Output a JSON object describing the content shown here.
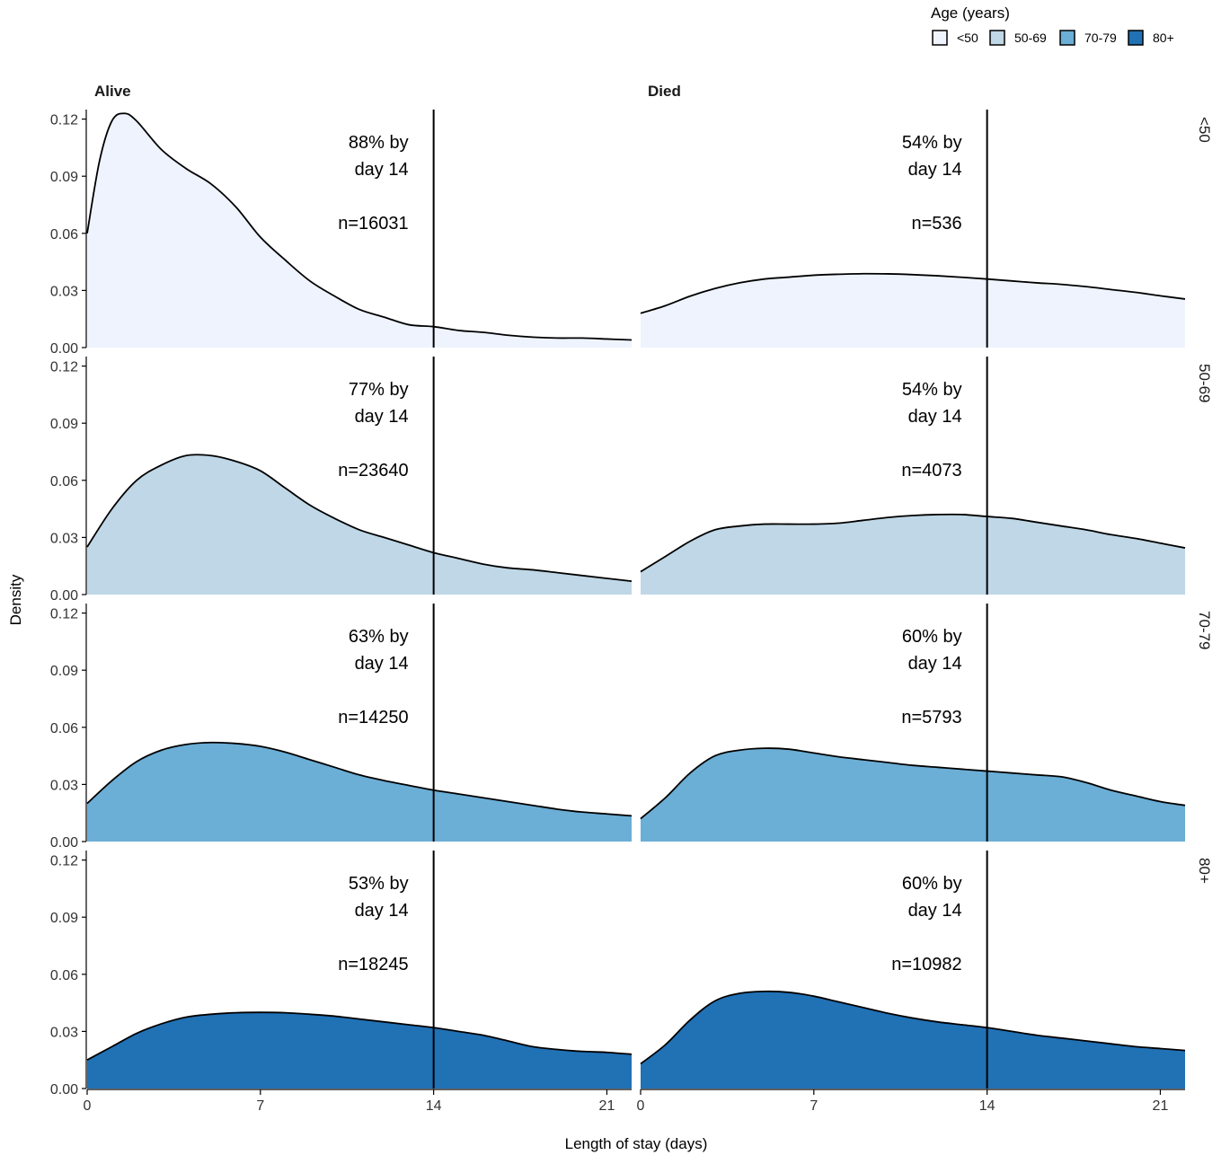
{
  "chart_data": {
    "type": "area",
    "subtype": "density",
    "xlabel": "Length of stay (days)",
    "ylabel": "Density",
    "xlim": [
      0,
      22
    ],
    "ylim": [
      0,
      0.125
    ],
    "x_ticks": [
      0,
      7,
      14,
      21
    ],
    "x_tick_labels": [
      "0",
      "7",
      "14",
      "21"
    ],
    "y_ticks": [
      0,
      0.03,
      0.06,
      0.09,
      0.12
    ],
    "y_tick_labels": [
      "0.00",
      "0.03",
      "0.06",
      "0.09",
      "0.12"
    ],
    "reference_line_x": 14,
    "columns": [
      "Alive",
      "Died"
    ],
    "rows": [
      "<50",
      "50-69",
      "70-79",
      "80+"
    ],
    "legend": {
      "title": "Age (years)",
      "position": "top-right",
      "entries": [
        {
          "label": "<50",
          "color": "#eef3fe"
        },
        {
          "label": "50-69",
          "color": "#bfd7e6"
        },
        {
          "label": "70-79",
          "color": "#6baed6"
        },
        {
          "label": "80+",
          "color": "#2171b5"
        }
      ]
    },
    "panels": [
      {
        "column": "Alive",
        "row": "<50",
        "color": "#eef3fe",
        "pct_text": "88% by",
        "day_text": "day 14",
        "n_text": "n=16031",
        "x": [
          0,
          0.5,
          1,
          1.5,
          2,
          3,
          4,
          5,
          6,
          7,
          8,
          9,
          10,
          11,
          12,
          13,
          14,
          15,
          16,
          17,
          18,
          19,
          20,
          21,
          22
        ],
        "y": [
          0.06,
          0.098,
          0.119,
          0.123,
          0.119,
          0.104,
          0.094,
          0.086,
          0.074,
          0.058,
          0.046,
          0.035,
          0.027,
          0.02,
          0.016,
          0.012,
          0.011,
          0.009,
          0.008,
          0.0065,
          0.0055,
          0.005,
          0.005,
          0.0045,
          0.004
        ]
      },
      {
        "column": "Died",
        "row": "<50",
        "color": "#eef3fe",
        "pct_text": "54% by",
        "day_text": "day 14",
        "n_text": "n=536",
        "x": [
          0,
          1,
          2,
          3,
          4,
          5,
          6,
          7,
          8,
          9,
          10,
          11,
          12,
          13,
          14,
          15,
          16,
          17,
          18,
          19,
          20,
          21,
          22
        ],
        "y": [
          0.018,
          0.022,
          0.027,
          0.031,
          0.034,
          0.036,
          0.037,
          0.038,
          0.0385,
          0.0388,
          0.0387,
          0.0383,
          0.0377,
          0.0369,
          0.036,
          0.035,
          0.034,
          0.0332,
          0.032,
          0.0305,
          0.029,
          0.0272,
          0.0255
        ]
      },
      {
        "column": "Alive",
        "row": "50-69",
        "color": "#bfd7e6",
        "pct_text": "77% by",
        "day_text": "day 14",
        "n_text": "n=23640",
        "x": [
          0,
          1,
          2,
          3,
          4,
          5,
          6,
          7,
          8,
          9,
          10,
          11,
          12,
          13,
          14,
          15,
          16,
          17,
          18,
          19,
          20,
          21,
          22
        ],
        "y": [
          0.025,
          0.045,
          0.06,
          0.068,
          0.073,
          0.073,
          0.07,
          0.065,
          0.056,
          0.047,
          0.04,
          0.034,
          0.03,
          0.026,
          0.022,
          0.019,
          0.016,
          0.014,
          0.013,
          0.0115,
          0.01,
          0.0085,
          0.007
        ]
      },
      {
        "column": "Died",
        "row": "50-69",
        "color": "#bfd7e6",
        "pct_text": "54% by",
        "day_text": "day 14",
        "n_text": "n=4073",
        "x": [
          0,
          1,
          2,
          3,
          4,
          5,
          6,
          7,
          8,
          9,
          10,
          11,
          12,
          13,
          14,
          15,
          16,
          17,
          18,
          19,
          20,
          21,
          22
        ],
        "y": [
          0.012,
          0.02,
          0.028,
          0.034,
          0.036,
          0.037,
          0.037,
          0.037,
          0.0375,
          0.039,
          0.0405,
          0.0415,
          0.042,
          0.042,
          0.041,
          0.04,
          0.038,
          0.036,
          0.034,
          0.0315,
          0.0295,
          0.027,
          0.0245
        ]
      },
      {
        "column": "Alive",
        "row": "70-79",
        "color": "#6baed6",
        "pct_text": "63% by",
        "day_text": "day 14",
        "n_text": "n=14250",
        "x": [
          0,
          1,
          2,
          3,
          4,
          5,
          6,
          7,
          8,
          9,
          10,
          11,
          12,
          13,
          14,
          15,
          16,
          17,
          18,
          19,
          20,
          21,
          22
        ],
        "y": [
          0.02,
          0.032,
          0.042,
          0.048,
          0.051,
          0.052,
          0.0515,
          0.05,
          0.047,
          0.043,
          0.039,
          0.035,
          0.032,
          0.0295,
          0.027,
          0.025,
          0.023,
          0.021,
          0.019,
          0.017,
          0.0155,
          0.0145,
          0.0135
        ]
      },
      {
        "column": "Died",
        "row": "70-79",
        "color": "#6baed6",
        "pct_text": "60% by",
        "day_text": "day 14",
        "n_text": "n=5793",
        "x": [
          0,
          1,
          2,
          3,
          4,
          5,
          6,
          7,
          8,
          9,
          10,
          11,
          12,
          13,
          14,
          15,
          16,
          17,
          18,
          19,
          20,
          21,
          22
        ],
        "y": [
          0.012,
          0.023,
          0.036,
          0.045,
          0.048,
          0.049,
          0.0485,
          0.0465,
          0.0445,
          0.043,
          0.0415,
          0.04,
          0.039,
          0.038,
          0.037,
          0.036,
          0.035,
          0.034,
          0.031,
          0.027,
          0.024,
          0.021,
          0.019
        ]
      },
      {
        "column": "Alive",
        "row": "80+",
        "color": "#2171b5",
        "pct_text": "53% by",
        "day_text": "day 14",
        "n_text": "n=18245",
        "x": [
          0,
          1,
          2,
          3,
          4,
          5,
          6,
          7,
          8,
          9,
          10,
          11,
          12,
          13,
          14,
          15,
          16,
          17,
          18,
          19,
          20,
          21,
          22
        ],
        "y": [
          0.015,
          0.022,
          0.029,
          0.034,
          0.0375,
          0.039,
          0.0398,
          0.04,
          0.0398,
          0.039,
          0.038,
          0.0365,
          0.035,
          0.0335,
          0.032,
          0.03,
          0.028,
          0.025,
          0.022,
          0.0205,
          0.0195,
          0.019,
          0.018
        ]
      },
      {
        "column": "Died",
        "row": "80+",
        "color": "#2171b5",
        "pct_text": "60% by",
        "day_text": "day 14",
        "n_text": "n=10982",
        "x": [
          0,
          1,
          2,
          3,
          4,
          5,
          6,
          7,
          8,
          9,
          10,
          11,
          12,
          13,
          14,
          15,
          16,
          17,
          18,
          19,
          20,
          21,
          22
        ],
        "y": [
          0.013,
          0.023,
          0.036,
          0.046,
          0.05,
          0.051,
          0.0505,
          0.0485,
          0.0455,
          0.0425,
          0.0395,
          0.037,
          0.035,
          0.0335,
          0.032,
          0.03,
          0.028,
          0.0265,
          0.025,
          0.0235,
          0.022,
          0.021,
          0.02
        ]
      }
    ]
  }
}
